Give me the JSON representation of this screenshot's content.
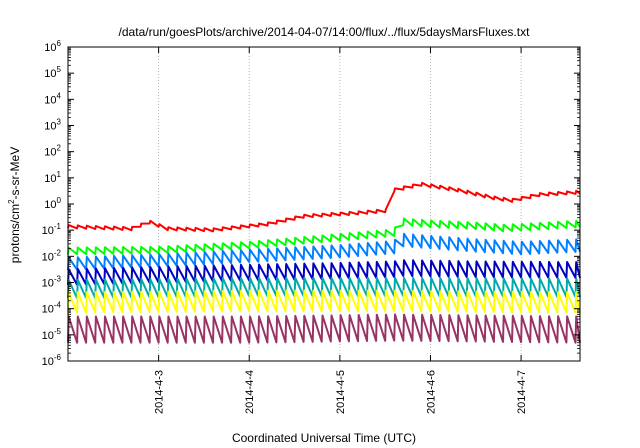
{
  "chart_data": {
    "type": "line",
    "title": "/data/run/goesPlots/archive/2014-04-07/14:00/flux/../flux/5daysMarsFluxes.txt",
    "ylabel_main": "protons/cm",
    "ylabel_sup": "2",
    "ylabel_rest": "-s-sr-MeV",
    "xlabel": "Coordinated Universal Time (UTC)",
    "y_scale": "log",
    "ylim": [
      1e-06,
      1000000.0
    ],
    "y_ticks": [
      {
        "value": 1e-06,
        "base": "10",
        "exp": "-6"
      },
      {
        "value": 1e-05,
        "base": "10",
        "exp": "-5"
      },
      {
        "value": 0.0001,
        "base": "10",
        "exp": "-4"
      },
      {
        "value": 0.001,
        "base": "10",
        "exp": "-3"
      },
      {
        "value": 0.01,
        "base": "10",
        "exp": "-2"
      },
      {
        "value": 0.1,
        "base": "10",
        "exp": "-1"
      },
      {
        "value": 1,
        "base": "10",
        "exp": "0"
      },
      {
        "value": 10,
        "base": "10",
        "exp": "1"
      },
      {
        "value": 100,
        "base": "10",
        "exp": "2"
      },
      {
        "value": 1000,
        "base": "10",
        "exp": "3"
      },
      {
        "value": 10000,
        "base": "10",
        "exp": "4"
      },
      {
        "value": 100000,
        "base": "10",
        "exp": "5"
      },
      {
        "value": 1000000,
        "base": "10",
        "exp": "6"
      }
    ],
    "xlim": [
      2.0,
      7.65
    ],
    "x_ticks": [
      {
        "value": 3,
        "label": "2014-4-3"
      },
      {
        "value": 4,
        "label": "2014-4-4"
      },
      {
        "value": 5,
        "label": "2014-4-5"
      },
      {
        "value": 6,
        "label": "2014-4-6"
      },
      {
        "value": 7,
        "label": "2014-4-7"
      }
    ],
    "grid": true,
    "legend": "none",
    "sawtooth_periods": 56,
    "series": [
      {
        "color": "#ff0000",
        "low": [
          [
            2.0,
            0.12
          ],
          [
            2.7,
            0.1
          ],
          [
            2.9,
            0.18
          ],
          [
            3.1,
            0.1
          ],
          [
            3.6,
            0.09
          ],
          [
            4.2,
            0.15
          ],
          [
            4.6,
            0.3
          ],
          [
            5.2,
            0.4
          ],
          [
            5.55,
            0.5
          ],
          [
            5.6,
            3.0
          ],
          [
            5.9,
            5.0
          ],
          [
            6.3,
            3.0
          ],
          [
            6.7,
            1.5
          ],
          [
            6.9,
            1.2
          ],
          [
            7.2,
            2.0
          ],
          [
            7.65,
            2.5
          ]
        ],
        "amp": 1.3,
        "period": 0.1
      },
      {
        "color": "#00ff00",
        "low": [
          [
            2.0,
            0.012
          ],
          [
            3.0,
            0.013
          ],
          [
            4.0,
            0.02
          ],
          [
            5.0,
            0.04
          ],
          [
            5.6,
            0.06
          ],
          [
            5.65,
            0.16
          ],
          [
            6.0,
            0.13
          ],
          [
            6.5,
            0.11
          ],
          [
            6.8,
            0.09
          ],
          [
            7.1,
            0.1
          ],
          [
            7.65,
            0.13
          ]
        ],
        "amp": 1.8,
        "period": 0.1
      },
      {
        "color": "#0080ff",
        "low": [
          [
            2.0,
            0.003
          ],
          [
            3.0,
            0.004
          ],
          [
            4.0,
            0.006
          ],
          [
            5.0,
            0.009
          ],
          [
            5.6,
            0.013
          ],
          [
            5.65,
            0.025
          ],
          [
            6.5,
            0.015
          ],
          [
            7.0,
            0.012
          ],
          [
            7.65,
            0.015
          ]
        ],
        "amp": 3.0,
        "period": 0.1
      },
      {
        "color": "#0000c0",
        "low": [
          [
            2.0,
            0.0008
          ],
          [
            3.0,
            0.001
          ],
          [
            4.0,
            0.0012
          ],
          [
            5.0,
            0.0014
          ],
          [
            5.6,
            0.0016
          ],
          [
            5.65,
            0.0018
          ],
          [
            6.5,
            0.0016
          ],
          [
            7.65,
            0.0015
          ]
        ],
        "amp": 4.0,
        "period": 0.1
      },
      {
        "color": "#00aaaa",
        "low": [
          [
            2.0,
            0.00025
          ],
          [
            4.0,
            0.0003
          ],
          [
            5.6,
            0.0003
          ],
          [
            7.65,
            0.00028
          ]
        ],
        "amp": 5.0,
        "period": 0.1
      },
      {
        "color": "#ffff00",
        "low": [
          [
            2.0,
            7e-05
          ],
          [
            4.0,
            8e-05
          ],
          [
            5.6,
            8e-05
          ],
          [
            7.65,
            7e-05
          ]
        ],
        "amp": 6.0,
        "period": 0.1
      },
      {
        "color": "#993366",
        "low": [
          [
            2.0,
            5e-06
          ],
          [
            4.0,
            5e-06
          ],
          [
            5.6,
            6e-06
          ],
          [
            7.65,
            5e-06
          ]
        ],
        "amp": 10.0,
        "period": 0.1
      }
    ]
  }
}
